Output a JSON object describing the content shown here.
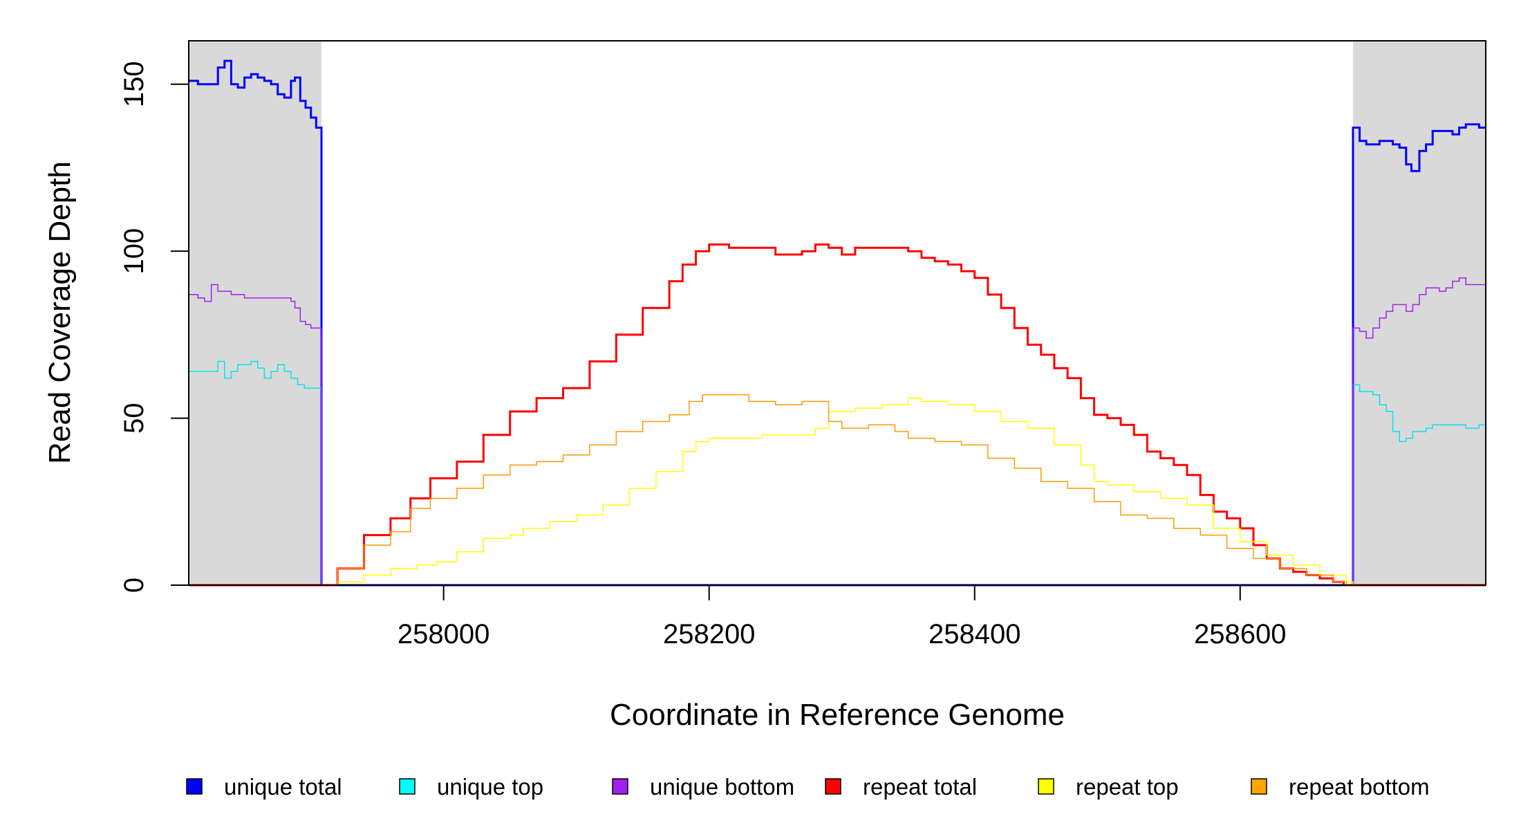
{
  "chart_data": {
    "type": "line",
    "title": "",
    "xlabel": "Coordinate in Reference Genome",
    "ylabel": "Read Coverage Depth",
    "xlim": [
      257808,
      258785
    ],
    "ylim": [
      0,
      163
    ],
    "xticks": [
      258000,
      258200,
      258400,
      258600
    ],
    "xtick_labels": [
      "258000",
      "258200",
      "258400",
      "258600"
    ],
    "yticks": [
      0,
      50,
      100,
      150
    ],
    "ytick_labels": [
      "0",
      "50",
      "100",
      "150"
    ],
    "shaded_regions": [
      {
        "x0": 257808,
        "x1": 257908,
        "color": "#d9d9d9"
      },
      {
        "x0": 258685,
        "x1": 258785,
        "color": "#d9d9d9"
      }
    ],
    "legend_position": "bottom",
    "series": [
      {
        "name": "unique total",
        "color": "#0000ff",
        "width": 3,
        "points": [
          [
            257808,
            151
          ],
          [
            257815,
            150
          ],
          [
            257825,
            150
          ],
          [
            257830,
            155
          ],
          [
            257835,
            157
          ],
          [
            257840,
            150
          ],
          [
            257845,
            149
          ],
          [
            257850,
            152
          ],
          [
            257855,
            153
          ],
          [
            257860,
            152
          ],
          [
            257865,
            151
          ],
          [
            257870,
            150
          ],
          [
            257875,
            147
          ],
          [
            257880,
            146
          ],
          [
            257885,
            151
          ],
          [
            257888,
            152
          ],
          [
            257892,
            145
          ],
          [
            257896,
            143
          ],
          [
            257900,
            140
          ],
          [
            257904,
            137
          ],
          [
            257908,
            136
          ],
          [
            257908,
            0
          ],
          [
            258685,
            0
          ],
          [
            258685,
            137
          ],
          [
            258690,
            133
          ],
          [
            258695,
            132
          ],
          [
            258705,
            133
          ],
          [
            258715,
            132
          ],
          [
            258720,
            131
          ],
          [
            258725,
            126
          ],
          [
            258729,
            124
          ],
          [
            258735,
            130
          ],
          [
            258740,
            132
          ],
          [
            258745,
            136
          ],
          [
            258755,
            136
          ],
          [
            258760,
            135
          ],
          [
            258765,
            137
          ],
          [
            258770,
            138
          ],
          [
            258780,
            137
          ],
          [
            258785,
            137
          ]
        ]
      },
      {
        "name": "unique top",
        "color": "#00e5ee",
        "width": 1.5,
        "points": [
          [
            257808,
            64
          ],
          [
            257825,
            64
          ],
          [
            257830,
            67
          ],
          [
            257835,
            62
          ],
          [
            257840,
            64
          ],
          [
            257845,
            66
          ],
          [
            257855,
            67
          ],
          [
            257860,
            65
          ],
          [
            257865,
            62
          ],
          [
            257870,
            64
          ],
          [
            257875,
            66
          ],
          [
            257880,
            64
          ],
          [
            257885,
            62
          ],
          [
            257890,
            60
          ],
          [
            257895,
            59
          ],
          [
            257908,
            59
          ],
          [
            257908,
            0
          ],
          [
            258685,
            0
          ],
          [
            258685,
            60
          ],
          [
            258690,
            58
          ],
          [
            258700,
            57
          ],
          [
            258705,
            54
          ],
          [
            258710,
            52
          ],
          [
            258715,
            46
          ],
          [
            258720,
            43
          ],
          [
            258725,
            44
          ],
          [
            258730,
            46
          ],
          [
            258740,
            47
          ],
          [
            258745,
            48
          ],
          [
            258755,
            48
          ],
          [
            258770,
            47
          ],
          [
            258780,
            48
          ],
          [
            258785,
            48
          ]
        ]
      },
      {
        "name": "unique bottom",
        "color": "#a020f0",
        "width": 1.5,
        "points": [
          [
            257808,
            87
          ],
          [
            257815,
            86
          ],
          [
            257820,
            85
          ],
          [
            257825,
            90
          ],
          [
            257830,
            88
          ],
          [
            257840,
            87
          ],
          [
            257850,
            86
          ],
          [
            257860,
            86
          ],
          [
            257870,
            86
          ],
          [
            257880,
            86
          ],
          [
            257885,
            85
          ],
          [
            257888,
            83
          ],
          [
            257892,
            79
          ],
          [
            257896,
            78
          ],
          [
            257900,
            77
          ],
          [
            257908,
            77
          ],
          [
            257908,
            0
          ],
          [
            258685,
            0
          ],
          [
            258685,
            77
          ],
          [
            258690,
            76
          ],
          [
            258695,
            74
          ],
          [
            258700,
            77
          ],
          [
            258705,
            80
          ],
          [
            258710,
            82
          ],
          [
            258715,
            84
          ],
          [
            258720,
            84
          ],
          [
            258725,
            82
          ],
          [
            258730,
            84
          ],
          [
            258735,
            87
          ],
          [
            258740,
            89
          ],
          [
            258745,
            89
          ],
          [
            258750,
            88
          ],
          [
            258755,
            89
          ],
          [
            258760,
            91
          ],
          [
            258765,
            92
          ],
          [
            258770,
            90
          ],
          [
            258785,
            89
          ]
        ]
      },
      {
        "name": "repeat total",
        "color": "#ff0000",
        "width": 3,
        "points": [
          [
            257808,
            0
          ],
          [
            257908,
            0
          ],
          [
            257920,
            5
          ],
          [
            257940,
            15
          ],
          [
            257960,
            20
          ],
          [
            257975,
            26
          ],
          [
            257990,
            32
          ],
          [
            258010,
            37
          ],
          [
            258030,
            45
          ],
          [
            258050,
            52
          ],
          [
            258070,
            56
          ],
          [
            258090,
            59
          ],
          [
            258110,
            67
          ],
          [
            258130,
            75
          ],
          [
            258150,
            83
          ],
          [
            258170,
            91
          ],
          [
            258180,
            96
          ],
          [
            258190,
            100
          ],
          [
            258200,
            102
          ],
          [
            258215,
            101
          ],
          [
            258230,
            101
          ],
          [
            258240,
            101
          ],
          [
            258250,
            99
          ],
          [
            258260,
            99
          ],
          [
            258270,
            100
          ],
          [
            258280,
            102
          ],
          [
            258290,
            101
          ],
          [
            258300,
            99
          ],
          [
            258310,
            101
          ],
          [
            258320,
            101
          ],
          [
            258330,
            101
          ],
          [
            258340,
            101
          ],
          [
            258350,
            100
          ],
          [
            258360,
            98
          ],
          [
            258370,
            97
          ],
          [
            258380,
            96
          ],
          [
            258390,
            94
          ],
          [
            258400,
            92
          ],
          [
            258410,
            87
          ],
          [
            258420,
            83
          ],
          [
            258430,
            77
          ],
          [
            258440,
            72
          ],
          [
            258450,
            69
          ],
          [
            258460,
            65
          ],
          [
            258470,
            62
          ],
          [
            258480,
            56
          ],
          [
            258490,
            51
          ],
          [
            258500,
            50
          ],
          [
            258510,
            48
          ],
          [
            258520,
            45
          ],
          [
            258530,
            40
          ],
          [
            258540,
            38
          ],
          [
            258550,
            36
          ],
          [
            258560,
            33
          ],
          [
            258570,
            27
          ],
          [
            258580,
            22
          ],
          [
            258590,
            20
          ],
          [
            258600,
            17
          ],
          [
            258610,
            12
          ],
          [
            258620,
            8
          ],
          [
            258630,
            5
          ],
          [
            258640,
            4
          ],
          [
            258650,
            3
          ],
          [
            258660,
            2
          ],
          [
            258670,
            1
          ],
          [
            258678,
            0
          ],
          [
            258785,
            0
          ]
        ]
      },
      {
        "name": "repeat top",
        "color": "#ffff00",
        "width": 1.5,
        "points": [
          [
            257808,
            0
          ],
          [
            257908,
            0
          ],
          [
            257920,
            1
          ],
          [
            257940,
            3
          ],
          [
            257960,
            5
          ],
          [
            257980,
            6
          ],
          [
            257995,
            7
          ],
          [
            258010,
            10
          ],
          [
            258030,
            14
          ],
          [
            258050,
            15
          ],
          [
            258060,
            17
          ],
          [
            258080,
            19
          ],
          [
            258100,
            21
          ],
          [
            258120,
            24
          ],
          [
            258140,
            29
          ],
          [
            258160,
            34
          ],
          [
            258180,
            40
          ],
          [
            258190,
            43
          ],
          [
            258200,
            44
          ],
          [
            258220,
            44
          ],
          [
            258240,
            45
          ],
          [
            258260,
            45
          ],
          [
            258280,
            47
          ],
          [
            258290,
            52
          ],
          [
            258300,
            52
          ],
          [
            258310,
            53
          ],
          [
            258330,
            54
          ],
          [
            258350,
            56
          ],
          [
            258360,
            55
          ],
          [
            258380,
            54
          ],
          [
            258400,
            52
          ],
          [
            258420,
            49
          ],
          [
            258440,
            47
          ],
          [
            258460,
            42
          ],
          [
            258480,
            36
          ],
          [
            258490,
            31
          ],
          [
            258500,
            30
          ],
          [
            258520,
            28
          ],
          [
            258540,
            26
          ],
          [
            258560,
            24
          ],
          [
            258580,
            17
          ],
          [
            258600,
            13
          ],
          [
            258620,
            9
          ],
          [
            258640,
            6
          ],
          [
            258660,
            3
          ],
          [
            258680,
            1
          ],
          [
            258685,
            0
          ],
          [
            258785,
            0
          ]
        ]
      },
      {
        "name": "repeat bottom",
        "color": "#ff9900",
        "width": 1.5,
        "points": [
          [
            257808,
            0
          ],
          [
            257908,
            0
          ],
          [
            257920,
            5
          ],
          [
            257940,
            12
          ],
          [
            257960,
            16
          ],
          [
            257975,
            23
          ],
          [
            257990,
            26
          ],
          [
            258010,
            29
          ],
          [
            258030,
            33
          ],
          [
            258050,
            36
          ],
          [
            258070,
            37
          ],
          [
            258090,
            39
          ],
          [
            258110,
            42
          ],
          [
            258130,
            46
          ],
          [
            258150,
            49
          ],
          [
            258170,
            51
          ],
          [
            258185,
            55
          ],
          [
            258195,
            57
          ],
          [
            258210,
            57
          ],
          [
            258230,
            55
          ],
          [
            258250,
            54
          ],
          [
            258270,
            55
          ],
          [
            258290,
            49
          ],
          [
            258300,
            47
          ],
          [
            258320,
            48
          ],
          [
            258340,
            46
          ],
          [
            258350,
            44
          ],
          [
            258370,
            43
          ],
          [
            258390,
            42
          ],
          [
            258410,
            38
          ],
          [
            258430,
            35
          ],
          [
            258450,
            31
          ],
          [
            258470,
            29
          ],
          [
            258490,
            25
          ],
          [
            258510,
            21
          ],
          [
            258530,
            20
          ],
          [
            258550,
            17
          ],
          [
            258570,
            15
          ],
          [
            258590,
            11
          ],
          [
            258610,
            8
          ],
          [
            258630,
            5
          ],
          [
            258650,
            3
          ],
          [
            258670,
            1
          ],
          [
            258680,
            0
          ],
          [
            258785,
            0
          ]
        ]
      }
    ]
  }
}
